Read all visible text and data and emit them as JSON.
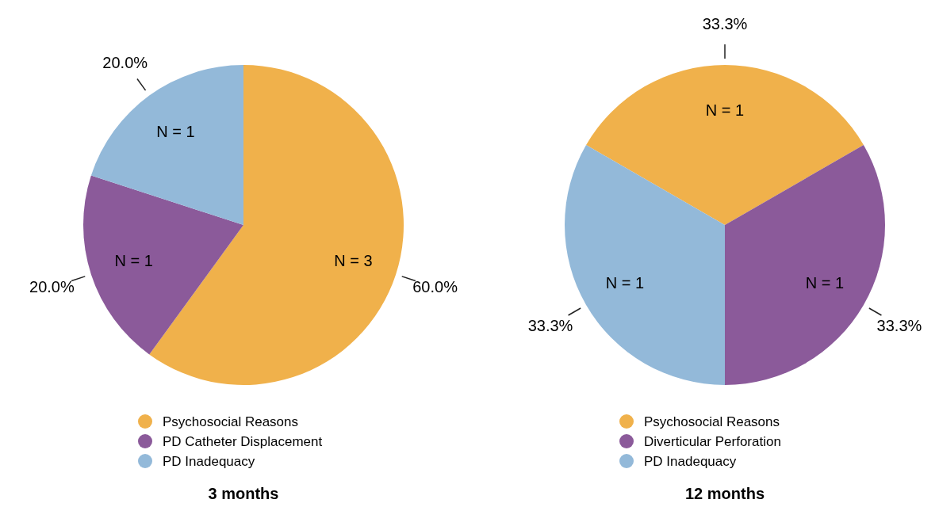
{
  "chart_data": [
    {
      "type": "pie",
      "title": "3 months",
      "categories": [
        "Psychosocial Reasons",
        "PD Catheter Displacement",
        "PD Inadequacy"
      ],
      "values": [
        60,
        20,
        20
      ],
      "colors": [
        "#f0b14b",
        "#8b5a9a",
        "#93b9d9"
      ],
      "value_labels": [
        "60.0%",
        "20.0%",
        "20.0%"
      ],
      "annotations": [
        "N = 3",
        "N = 1",
        "N = 1"
      ],
      "legend": "bottom"
    },
    {
      "type": "pie",
      "title": "12 months",
      "categories": [
        "Psychosocial Reasons",
        "Diverticular Perforation",
        "PD Inadequacy"
      ],
      "values": [
        33.3,
        33.3,
        33.3
      ],
      "colors": [
        "#f0b14b",
        "#8b5a9a",
        "#93b9d9"
      ],
      "value_labels": [
        "33.3%",
        "33.3%",
        "33.3%"
      ],
      "annotations": [
        "N = 1",
        "N = 1",
        "N = 1"
      ],
      "legend": "bottom"
    }
  ]
}
